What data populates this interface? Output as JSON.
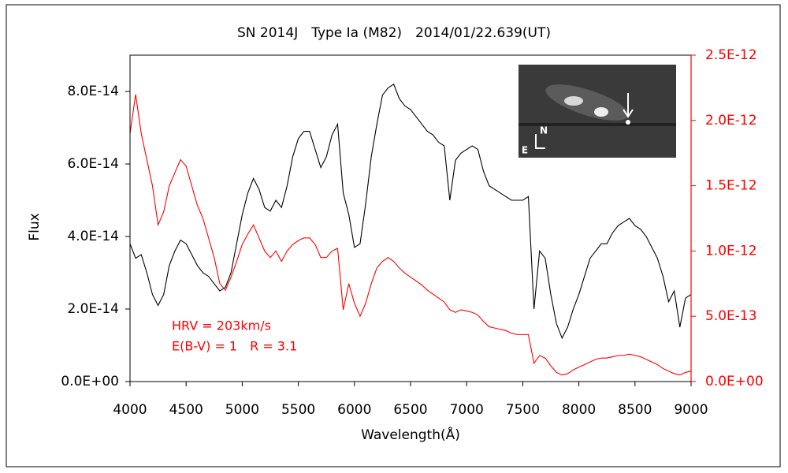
{
  "chart_data": {
    "type": "line",
    "title": "SN 2014J　Type Ia (M82)　2014/01/22.639(UT)",
    "xlabel": "Wavelength(Å)",
    "ylabel": "Flux",
    "annotations": [
      "HRV = 203km/s",
      "E(B-V) = 1　R = 3.1"
    ],
    "annotation_color": "#ff0000",
    "x": [
      4000,
      4050,
      4100,
      4150,
      4200,
      4250,
      4300,
      4350,
      4400,
      4450,
      4500,
      4550,
      4600,
      4650,
      4700,
      4750,
      4800,
      4850,
      4900,
      4950,
      5000,
      5050,
      5100,
      5150,
      5200,
      5250,
      5300,
      5350,
      5400,
      5450,
      5500,
      5550,
      5600,
      5650,
      5700,
      5750,
      5800,
      5850,
      5900,
      5950,
      6000,
      6050,
      6100,
      6150,
      6200,
      6250,
      6300,
      6350,
      6400,
      6450,
      6500,
      6550,
      6600,
      6650,
      6700,
      6750,
      6800,
      6850,
      6900,
      6950,
      7000,
      7050,
      7100,
      7150,
      7200,
      7250,
      7300,
      7350,
      7400,
      7450,
      7500,
      7550,
      7600,
      7650,
      7700,
      7750,
      7800,
      7850,
      7900,
      7950,
      8000,
      8050,
      8100,
      8150,
      8200,
      8250,
      8300,
      8350,
      8400,
      8450,
      8500,
      8550,
      8600,
      8650,
      8700,
      8750,
      8800,
      8850,
      8900,
      8950,
      9000
    ],
    "series": [
      {
        "color": "#000000",
        "values": [
          3.8e-14,
          3.4e-14,
          3.5e-14,
          3e-14,
          2.4e-14,
          2.1e-14,
          2.4e-14,
          3.2e-14,
          3.6e-14,
          3.9e-14,
          3.8e-14,
          3.5e-14,
          3.2e-14,
          3e-14,
          2.9e-14,
          2.7e-14,
          2.5e-14,
          2.6e-14,
          3e-14,
          3.8e-14,
          4.6e-14,
          5.2e-14,
          5.6e-14,
          5.3e-14,
          4.8e-14,
          4.7e-14,
          5e-14,
          4.8e-14,
          5.4e-14,
          6.2e-14,
          6.7e-14,
          6.9e-14,
          6.9e-14,
          6.4e-14,
          5.9e-14,
          6.2e-14,
          6.8e-14,
          7.1e-14,
          5.2e-14,
          4.6e-14,
          3.7e-14,
          3.8e-14,
          4.9e-14,
          6.2e-14,
          7.1e-14,
          7.9e-14,
          8.1e-14,
          8.2e-14,
          7.8e-14,
          7.6e-14,
          7.5e-14,
          7.3e-14,
          7.1e-14,
          6.9e-14,
          6.8e-14,
          6.6e-14,
          6.5e-14,
          5e-14,
          6.1e-14,
          6.3e-14,
          6.4e-14,
          6.5e-14,
          6.4e-14,
          5.8e-14,
          5.4e-14,
          5.3e-14,
          5.2e-14,
          5.1e-14,
          5e-14,
          5e-14,
          5e-14,
          5.1e-14,
          2e-14,
          3.6e-14,
          3.4e-14,
          2.4e-14,
          1.6e-14,
          1.2e-14,
          1.5e-14,
          2e-14,
          2.4e-14,
          2.9e-14,
          3.4e-14,
          3.6e-14,
          3.8e-14,
          3.8e-14,
          4.1e-14,
          4.3e-14,
          4.4e-14,
          4.5e-14,
          4.3e-14,
          4.2e-14,
          4e-14,
          3.7e-14,
          3.4e-14,
          2.9e-14,
          2.2e-14,
          2.5e-14,
          1.5e-14,
          2.3e-14,
          2.4e-14
        ]
      },
      {
        "color": "#ff0000",
        "axis": "y2",
        "values": [
          1.9e-12,
          2.2e-12,
          1.9e-12,
          1.7e-12,
          1.5e-12,
          1.2e-12,
          1.3e-12,
          1.5e-12,
          1.6e-12,
          1.7e-12,
          1.65e-12,
          1.5e-12,
          1.35e-12,
          1.25e-12,
          1.1e-12,
          9.5e-13,
          7.5e-13,
          7e-13,
          8e-13,
          9.2e-13,
          1.05e-12,
          1.13e-12,
          1.2e-12,
          1.1e-12,
          1e-12,
          9.5e-13,
          1e-12,
          9.2e-13,
          1e-12,
          1.05e-12,
          1.08e-12,
          1.1e-12,
          1.1e-12,
          1.05e-12,
          9.5e-13,
          9.5e-13,
          1e-12,
          1.02e-12,
          5.5e-13,
          7.5e-13,
          6e-13,
          5e-13,
          6e-13,
          7.5e-13,
          8.7e-13,
          9.2e-13,
          9.5e-13,
          9.2e-13,
          8.7e-13,
          8.3e-13,
          8e-13,
          7.7e-13,
          7.4e-13,
          7e-13,
          6.7e-13,
          6.4e-13,
          6.1e-13,
          5.5e-13,
          5.3e-13,
          5.5e-13,
          5.4e-13,
          5.3e-13,
          5.1e-13,
          4.6e-13,
          4.2e-13,
          4.1e-13,
          4e-13,
          3.9e-13,
          3.7e-13,
          3.6e-13,
          3.6e-13,
          3.6e-13,
          1.4e-13,
          2e-13,
          1.8e-13,
          1.2e-13,
          7e-14,
          5e-14,
          6e-14,
          9e-14,
          1.1e-13,
          1.3e-13,
          1.5e-13,
          1.7e-13,
          1.8e-13,
          1.8e-13,
          1.9e-13,
          2e-13,
          2e-13,
          2.1e-13,
          2e-13,
          1.9e-13,
          1.7e-13,
          1.5e-13,
          1.3e-13,
          1e-13,
          8e-14,
          6e-14,
          5e-14,
          7e-14,
          8e-14
        ]
      }
    ],
    "xlim": [
      4000,
      9000
    ],
    "xticks": [
      4000,
      4500,
      5000,
      5500,
      6000,
      6500,
      7000,
      7500,
      8000,
      8500,
      9000
    ],
    "ylim": [
      0,
      9e-14
    ],
    "yticks": [
      {
        "value": 0,
        "label": "0.0E+00"
      },
      {
        "value": 2e-14,
        "label": "2.0E-14"
      },
      {
        "value": 4e-14,
        "label": "4.0E-14"
      },
      {
        "value": 6e-14,
        "label": "6.0E-14"
      },
      {
        "value": 8e-14,
        "label": "8.0E-14"
      }
    ],
    "y2lim": [
      0,
      2.5e-12
    ],
    "y2ticks": [
      {
        "value": 0,
        "label": "0.0E+00"
      },
      {
        "value": 5e-13,
        "label": "5.0E-13"
      },
      {
        "value": 1e-12,
        "label": "1.0E-12"
      },
      {
        "value": 1.5e-12,
        "label": "1.5E-12"
      },
      {
        "value": 2e-12,
        "label": "2.0E-12"
      },
      {
        "value": 2.5e-12,
        "label": "2.5E-12"
      }
    ],
    "y2_color": "#ff0000",
    "grid": false
  },
  "inset": {
    "north": "N",
    "east": "E"
  }
}
